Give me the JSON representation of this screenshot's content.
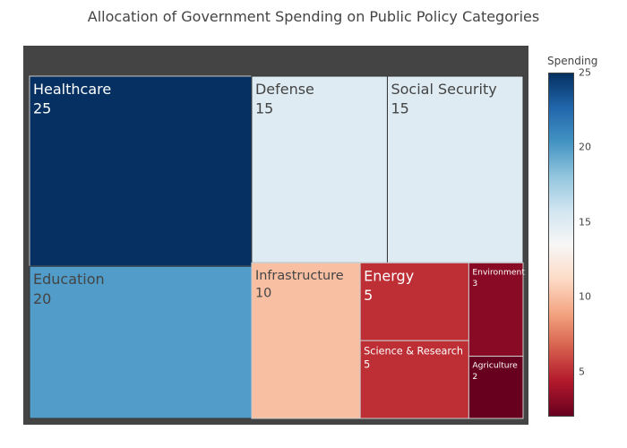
{
  "chart_data": {
    "type": "treemap",
    "title": "Allocation of Government Spending on Public Policy Categories",
    "items": [
      {
        "label": "Healthcare",
        "value": 25
      },
      {
        "label": "Education",
        "value": 20
      },
      {
        "label": "Defense",
        "value": 15
      },
      {
        "label": "Social Security",
        "value": 15
      },
      {
        "label": "Infrastructure",
        "value": 10
      },
      {
        "label": "Energy",
        "value": 5
      },
      {
        "label": "Science & Research",
        "value": 5
      },
      {
        "label": "Environment",
        "value": 3
      },
      {
        "label": "Agriculture",
        "value": 2
      }
    ],
    "colorbar": {
      "title": "Spending",
      "colorscale": "RdBu",
      "range": [
        2,
        25
      ],
      "ticks": [
        "5",
        "10",
        "15",
        "20",
        "25"
      ]
    }
  }
}
